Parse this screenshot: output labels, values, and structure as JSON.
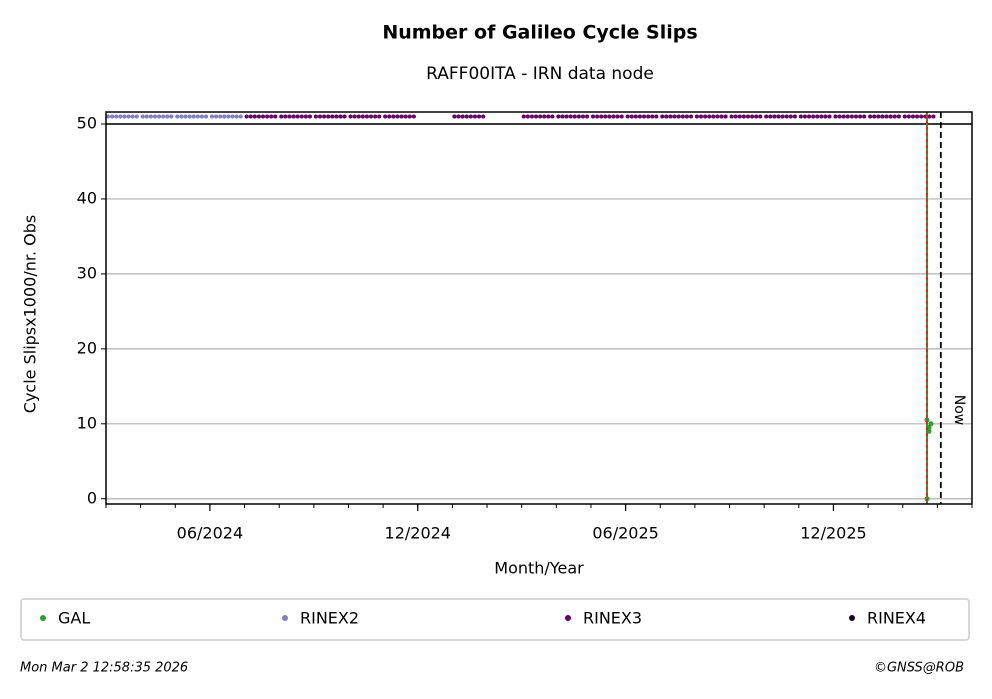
{
  "chart_data": {
    "type": "scatter",
    "title": "Number of Galileo Cycle Slips",
    "subtitle": "RAFF00ITA - IRN data node",
    "x_label": "Month/Year",
    "y_label": "Cycle Slipsx1000/nr. Obs",
    "xlim": [
      "03/2024",
      "04/2026"
    ],
    "xticks": [
      "06/2024",
      "12/2024",
      "06/2025",
      "12/2025"
    ],
    "ylim": [
      -0.7,
      51.6
    ],
    "yticks": [
      0,
      10,
      20,
      30,
      40,
      50
    ],
    "grid": true,
    "hline": 50,
    "vlines": [
      {
        "x": "02/2026",
        "color": "#d62728"
      },
      {
        "x": "03/2026",
        "label": "Now",
        "color": "#000000"
      }
    ],
    "series": [
      {
        "name": "GAL",
        "color": "#2ca02c",
        "x": [
          "02/2026",
          "02/2026",
          "02/2026",
          "02/2026",
          "02/2026"
        ],
        "values": [
          0,
          9,
          10,
          10.5,
          9.5
        ]
      },
      {
        "name": "RINEX2",
        "color": "#8080c0",
        "x": [
          "03/2024",
          "04/2024",
          "05/2024",
          "06/2024"
        ],
        "values": [
          51,
          51,
          51,
          51
        ]
      },
      {
        "name": "RINEX3",
        "color": "#660066",
        "x": [
          "07/2024",
          "08/2024",
          "09/2024",
          "10/2024",
          "11/2024",
          "01/2025",
          "03/2025",
          "04/2025",
          "05/2025",
          "06/2025",
          "07/2025",
          "08/2025",
          "09/2025",
          "10/2025",
          "11/2025",
          "12/2025",
          "01/2026",
          "02/2026"
        ],
        "values": [
          51,
          51,
          51,
          51,
          51,
          51,
          51,
          51,
          51,
          51,
          51,
          51,
          51,
          51,
          51,
          51,
          51,
          51
        ]
      },
      {
        "name": "RINEX4",
        "color": "#1a0026",
        "x": [],
        "values": []
      }
    ],
    "footer_left": "Mon Mar  2 12:58:35 2026",
    "footer_right": "©GNSS@ROB"
  }
}
